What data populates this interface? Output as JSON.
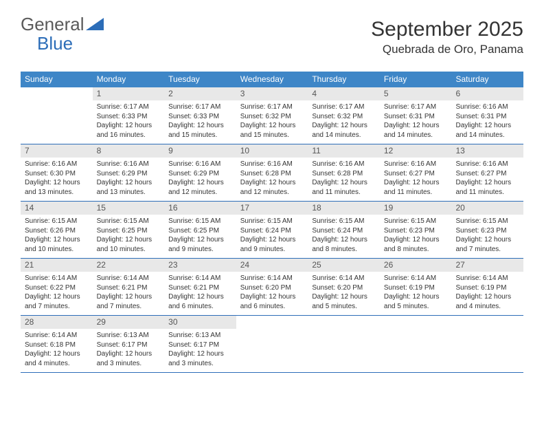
{
  "logo": {
    "text1": "General",
    "text2": "Blue"
  },
  "title": "September 2025",
  "location": "Quebrada de Oro, Panama",
  "colors": {
    "header_bg": "#3e86c7",
    "daynum_bg": "#e8e8e8",
    "row_border": "#2c6db8",
    "text": "#333333",
    "logo_gray": "#5a5a5a",
    "logo_blue": "#2c6db8"
  },
  "day_headers": [
    "Sunday",
    "Monday",
    "Tuesday",
    "Wednesday",
    "Thursday",
    "Friday",
    "Saturday"
  ],
  "weeks": [
    [
      {
        "n": "",
        "sunrise": "",
        "sunset": "",
        "daylight1": "",
        "daylight2": ""
      },
      {
        "n": "1",
        "sunrise": "Sunrise: 6:17 AM",
        "sunset": "Sunset: 6:33 PM",
        "daylight1": "Daylight: 12 hours",
        "daylight2": "and 16 minutes."
      },
      {
        "n": "2",
        "sunrise": "Sunrise: 6:17 AM",
        "sunset": "Sunset: 6:33 PM",
        "daylight1": "Daylight: 12 hours",
        "daylight2": "and 15 minutes."
      },
      {
        "n": "3",
        "sunrise": "Sunrise: 6:17 AM",
        "sunset": "Sunset: 6:32 PM",
        "daylight1": "Daylight: 12 hours",
        "daylight2": "and 15 minutes."
      },
      {
        "n": "4",
        "sunrise": "Sunrise: 6:17 AM",
        "sunset": "Sunset: 6:32 PM",
        "daylight1": "Daylight: 12 hours",
        "daylight2": "and 14 minutes."
      },
      {
        "n": "5",
        "sunrise": "Sunrise: 6:17 AM",
        "sunset": "Sunset: 6:31 PM",
        "daylight1": "Daylight: 12 hours",
        "daylight2": "and 14 minutes."
      },
      {
        "n": "6",
        "sunrise": "Sunrise: 6:16 AM",
        "sunset": "Sunset: 6:31 PM",
        "daylight1": "Daylight: 12 hours",
        "daylight2": "and 14 minutes."
      }
    ],
    [
      {
        "n": "7",
        "sunrise": "Sunrise: 6:16 AM",
        "sunset": "Sunset: 6:30 PM",
        "daylight1": "Daylight: 12 hours",
        "daylight2": "and 13 minutes."
      },
      {
        "n": "8",
        "sunrise": "Sunrise: 6:16 AM",
        "sunset": "Sunset: 6:29 PM",
        "daylight1": "Daylight: 12 hours",
        "daylight2": "and 13 minutes."
      },
      {
        "n": "9",
        "sunrise": "Sunrise: 6:16 AM",
        "sunset": "Sunset: 6:29 PM",
        "daylight1": "Daylight: 12 hours",
        "daylight2": "and 12 minutes."
      },
      {
        "n": "10",
        "sunrise": "Sunrise: 6:16 AM",
        "sunset": "Sunset: 6:28 PM",
        "daylight1": "Daylight: 12 hours",
        "daylight2": "and 12 minutes."
      },
      {
        "n": "11",
        "sunrise": "Sunrise: 6:16 AM",
        "sunset": "Sunset: 6:28 PM",
        "daylight1": "Daylight: 12 hours",
        "daylight2": "and 11 minutes."
      },
      {
        "n": "12",
        "sunrise": "Sunrise: 6:16 AM",
        "sunset": "Sunset: 6:27 PM",
        "daylight1": "Daylight: 12 hours",
        "daylight2": "and 11 minutes."
      },
      {
        "n": "13",
        "sunrise": "Sunrise: 6:16 AM",
        "sunset": "Sunset: 6:27 PM",
        "daylight1": "Daylight: 12 hours",
        "daylight2": "and 11 minutes."
      }
    ],
    [
      {
        "n": "14",
        "sunrise": "Sunrise: 6:15 AM",
        "sunset": "Sunset: 6:26 PM",
        "daylight1": "Daylight: 12 hours",
        "daylight2": "and 10 minutes."
      },
      {
        "n": "15",
        "sunrise": "Sunrise: 6:15 AM",
        "sunset": "Sunset: 6:25 PM",
        "daylight1": "Daylight: 12 hours",
        "daylight2": "and 10 minutes."
      },
      {
        "n": "16",
        "sunrise": "Sunrise: 6:15 AM",
        "sunset": "Sunset: 6:25 PM",
        "daylight1": "Daylight: 12 hours",
        "daylight2": "and 9 minutes."
      },
      {
        "n": "17",
        "sunrise": "Sunrise: 6:15 AM",
        "sunset": "Sunset: 6:24 PM",
        "daylight1": "Daylight: 12 hours",
        "daylight2": "and 9 minutes."
      },
      {
        "n": "18",
        "sunrise": "Sunrise: 6:15 AM",
        "sunset": "Sunset: 6:24 PM",
        "daylight1": "Daylight: 12 hours",
        "daylight2": "and 8 minutes."
      },
      {
        "n": "19",
        "sunrise": "Sunrise: 6:15 AM",
        "sunset": "Sunset: 6:23 PM",
        "daylight1": "Daylight: 12 hours",
        "daylight2": "and 8 minutes."
      },
      {
        "n": "20",
        "sunrise": "Sunrise: 6:15 AM",
        "sunset": "Sunset: 6:23 PM",
        "daylight1": "Daylight: 12 hours",
        "daylight2": "and 7 minutes."
      }
    ],
    [
      {
        "n": "21",
        "sunrise": "Sunrise: 6:14 AM",
        "sunset": "Sunset: 6:22 PM",
        "daylight1": "Daylight: 12 hours",
        "daylight2": "and 7 minutes."
      },
      {
        "n": "22",
        "sunrise": "Sunrise: 6:14 AM",
        "sunset": "Sunset: 6:21 PM",
        "daylight1": "Daylight: 12 hours",
        "daylight2": "and 7 minutes."
      },
      {
        "n": "23",
        "sunrise": "Sunrise: 6:14 AM",
        "sunset": "Sunset: 6:21 PM",
        "daylight1": "Daylight: 12 hours",
        "daylight2": "and 6 minutes."
      },
      {
        "n": "24",
        "sunrise": "Sunrise: 6:14 AM",
        "sunset": "Sunset: 6:20 PM",
        "daylight1": "Daylight: 12 hours",
        "daylight2": "and 6 minutes."
      },
      {
        "n": "25",
        "sunrise": "Sunrise: 6:14 AM",
        "sunset": "Sunset: 6:20 PM",
        "daylight1": "Daylight: 12 hours",
        "daylight2": "and 5 minutes."
      },
      {
        "n": "26",
        "sunrise": "Sunrise: 6:14 AM",
        "sunset": "Sunset: 6:19 PM",
        "daylight1": "Daylight: 12 hours",
        "daylight2": "and 5 minutes."
      },
      {
        "n": "27",
        "sunrise": "Sunrise: 6:14 AM",
        "sunset": "Sunset: 6:19 PM",
        "daylight1": "Daylight: 12 hours",
        "daylight2": "and 4 minutes."
      }
    ],
    [
      {
        "n": "28",
        "sunrise": "Sunrise: 6:14 AM",
        "sunset": "Sunset: 6:18 PM",
        "daylight1": "Daylight: 12 hours",
        "daylight2": "and 4 minutes."
      },
      {
        "n": "29",
        "sunrise": "Sunrise: 6:13 AM",
        "sunset": "Sunset: 6:17 PM",
        "daylight1": "Daylight: 12 hours",
        "daylight2": "and 3 minutes."
      },
      {
        "n": "30",
        "sunrise": "Sunrise: 6:13 AM",
        "sunset": "Sunset: 6:17 PM",
        "daylight1": "Daylight: 12 hours",
        "daylight2": "and 3 minutes."
      },
      {
        "n": "",
        "sunrise": "",
        "sunset": "",
        "daylight1": "",
        "daylight2": ""
      },
      {
        "n": "",
        "sunrise": "",
        "sunset": "",
        "daylight1": "",
        "daylight2": ""
      },
      {
        "n": "",
        "sunrise": "",
        "sunset": "",
        "daylight1": "",
        "daylight2": ""
      },
      {
        "n": "",
        "sunrise": "",
        "sunset": "",
        "daylight1": "",
        "daylight2": ""
      }
    ]
  ]
}
